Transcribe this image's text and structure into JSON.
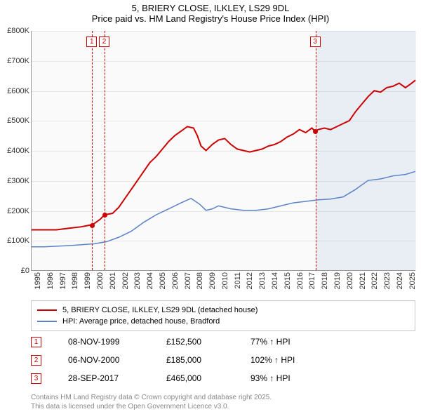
{
  "title": {
    "line1": "5, BRIERY CLOSE, ILKLEY, LS29 9DL",
    "line2": "Price paid vs. HM Land Registry's House Price Index (HPI)"
  },
  "chart": {
    "type": "line",
    "background_color": "#fafafa",
    "grid_color": "#e6e6e6",
    "axis_color": "#999999",
    "ylim": [
      0,
      800
    ],
    "ytick_step": 100,
    "ytick_labels": [
      "£0",
      "£100K",
      "£200K",
      "£300K",
      "£400K",
      "£500K",
      "£600K",
      "£700K",
      "£800K"
    ],
    "xlim_years": [
      1995,
      2025.8
    ],
    "xtick_years": [
      1995,
      1996,
      1997,
      1998,
      1999,
      2000,
      2001,
      2002,
      2003,
      2004,
      2005,
      2006,
      2007,
      2008,
      2009,
      2010,
      2011,
      2012,
      2013,
      2014,
      2015,
      2016,
      2017,
      2018,
      2019,
      2020,
      2021,
      2022,
      2023,
      2024,
      2025
    ],
    "highlight_band": {
      "x_start": 2017.74,
      "x_end": 2025.8,
      "color": "rgba(90,130,200,0.10)"
    },
    "series": [
      {
        "id": "property",
        "label": "5, BRIERY CLOSE, ILKLEY, LS29 9DL (detached house)",
        "color": "#cc0000",
        "line_width": 2,
        "points": [
          [
            1995.0,
            135
          ],
          [
            1996.0,
            135
          ],
          [
            1997.0,
            135
          ],
          [
            1998.0,
            140
          ],
          [
            1999.0,
            145
          ],
          [
            1999.85,
            152
          ],
          [
            2000.0,
            155
          ],
          [
            2000.5,
            170
          ],
          [
            2000.85,
            185
          ],
          [
            2001.5,
            190
          ],
          [
            2002.0,
            210
          ],
          [
            2002.5,
            240
          ],
          [
            2003.0,
            270
          ],
          [
            2003.5,
            300
          ],
          [
            2004.0,
            330
          ],
          [
            2004.5,
            360
          ],
          [
            2005.0,
            380
          ],
          [
            2005.5,
            405
          ],
          [
            2006.0,
            430
          ],
          [
            2006.5,
            450
          ],
          [
            2007.0,
            465
          ],
          [
            2007.5,
            480
          ],
          [
            2008.0,
            475
          ],
          [
            2008.3,
            450
          ],
          [
            2008.6,
            415
          ],
          [
            2009.0,
            400
          ],
          [
            2009.5,
            420
          ],
          [
            2010.0,
            435
          ],
          [
            2010.5,
            440
          ],
          [
            2011.0,
            420
          ],
          [
            2011.5,
            405
          ],
          [
            2012.0,
            400
          ],
          [
            2012.5,
            395
          ],
          [
            2013.0,
            400
          ],
          [
            2013.5,
            405
          ],
          [
            2014.0,
            415
          ],
          [
            2014.5,
            420
          ],
          [
            2015.0,
            430
          ],
          [
            2015.5,
            445
          ],
          [
            2016.0,
            455
          ],
          [
            2016.5,
            470
          ],
          [
            2017.0,
            460
          ],
          [
            2017.5,
            475
          ],
          [
            2017.74,
            465
          ],
          [
            2018.0,
            470
          ],
          [
            2018.5,
            475
          ],
          [
            2019.0,
            470
          ],
          [
            2019.5,
            480
          ],
          [
            2020.0,
            490
          ],
          [
            2020.5,
            500
          ],
          [
            2021.0,
            530
          ],
          [
            2021.5,
            555
          ],
          [
            2022.0,
            580
          ],
          [
            2022.5,
            600
          ],
          [
            2023.0,
            595
          ],
          [
            2023.5,
            610
          ],
          [
            2024.0,
            615
          ],
          [
            2024.5,
            625
          ],
          [
            2025.0,
            610
          ],
          [
            2025.5,
            625
          ],
          [
            2025.8,
            635
          ]
        ]
      },
      {
        "id": "hpi",
        "label": "HPI: Average price, detached house, Bradford",
        "color": "#5a82c8",
        "line_width": 1.5,
        "points": [
          [
            1995.0,
            78
          ],
          [
            1996.0,
            78
          ],
          [
            1997.0,
            80
          ],
          [
            1998.0,
            82
          ],
          [
            1999.0,
            85
          ],
          [
            2000.0,
            88
          ],
          [
            2001.0,
            95
          ],
          [
            2002.0,
            110
          ],
          [
            2003.0,
            130
          ],
          [
            2004.0,
            160
          ],
          [
            2005.0,
            185
          ],
          [
            2006.0,
            205
          ],
          [
            2007.0,
            225
          ],
          [
            2007.8,
            240
          ],
          [
            2008.5,
            220
          ],
          [
            2009.0,
            200
          ],
          [
            2009.5,
            205
          ],
          [
            2010.0,
            215
          ],
          [
            2011.0,
            205
          ],
          [
            2012.0,
            200
          ],
          [
            2013.0,
            200
          ],
          [
            2014.0,
            205
          ],
          [
            2015.0,
            215
          ],
          [
            2016.0,
            225
          ],
          [
            2017.0,
            230
          ],
          [
            2018.0,
            235
          ],
          [
            2019.0,
            238
          ],
          [
            2020.0,
            245
          ],
          [
            2021.0,
            270
          ],
          [
            2022.0,
            300
          ],
          [
            2023.0,
            305
          ],
          [
            2024.0,
            315
          ],
          [
            2025.0,
            320
          ],
          [
            2025.8,
            330
          ]
        ]
      }
    ],
    "markers": [
      {
        "n": "1",
        "year": 1999.85,
        "value": 152,
        "color": "#cc0000"
      },
      {
        "n": "2",
        "year": 2000.85,
        "value": 185,
        "color": "#cc0000"
      },
      {
        "n": "3",
        "year": 2017.74,
        "value": 465,
        "color": "#cc0000"
      }
    ]
  },
  "legend": {
    "items": [
      {
        "color": "#cc0000",
        "label": "5, BRIERY CLOSE, ILKLEY, LS29 9DL (detached house)"
      },
      {
        "color": "#5a82c8",
        "label": "HPI: Average price, detached house, Bradford"
      }
    ]
  },
  "sales": [
    {
      "n": "1",
      "date": "08-NOV-1999",
      "price": "£152,500",
      "pct": "77% ↑ HPI",
      "color": "#cc0000"
    },
    {
      "n": "2",
      "date": "06-NOV-2000",
      "price": "£185,000",
      "pct": "102% ↑ HPI",
      "color": "#cc0000"
    },
    {
      "n": "3",
      "date": "28-SEP-2017",
      "price": "£465,000",
      "pct": "93% ↑ HPI",
      "color": "#cc0000"
    }
  ],
  "footer": {
    "line1": "Contains HM Land Registry data © Crown copyright and database right 2025.",
    "line2": "This data is licensed under the Open Government Licence v3.0."
  }
}
